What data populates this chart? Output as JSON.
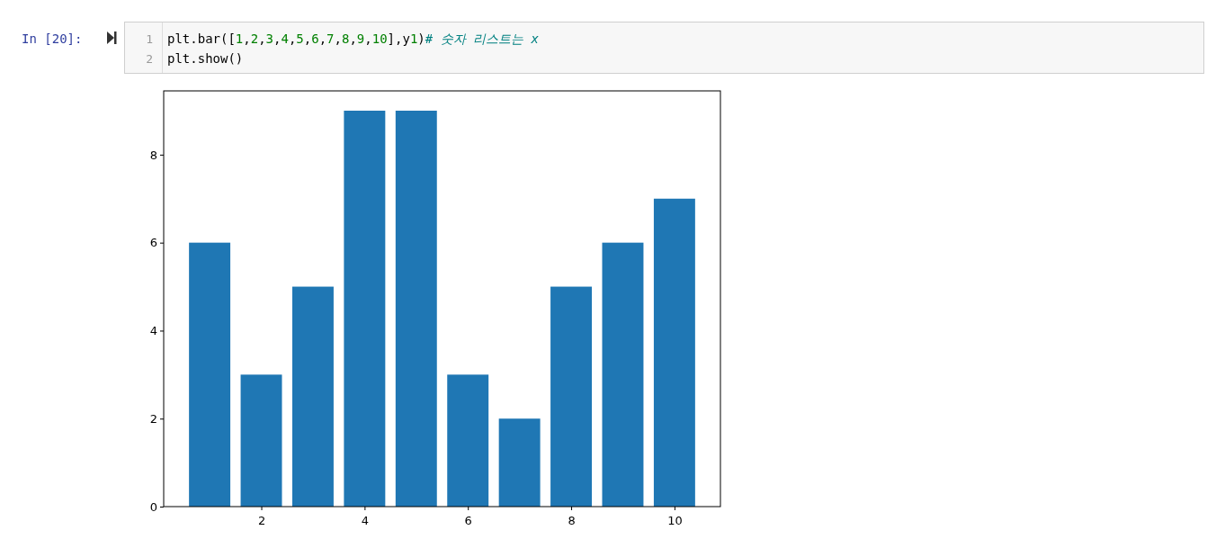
{
  "chart_data": {
    "type": "bar",
    "x": [
      1,
      2,
      3,
      4,
      5,
      6,
      7,
      8,
      9,
      10
    ],
    "values": [
      6,
      3,
      5,
      9,
      9,
      3,
      2,
      5,
      6,
      7
    ],
    "color": "#1f77b4",
    "xlim": [
      0.11,
      10.89
    ],
    "xticks": [
      2,
      4,
      6,
      8,
      10
    ],
    "ylim": [
      0,
      9.45
    ],
    "yticks": [
      0,
      2,
      4,
      6,
      8
    ],
    "annotations": [
      "In [20]:",
      "1",
      "plt.bar([1,2,3,4,5,6,7,8,9,10],y1)# 숫자 리스트는 x",
      "2",
      "plt.show()"
    ]
  }
}
